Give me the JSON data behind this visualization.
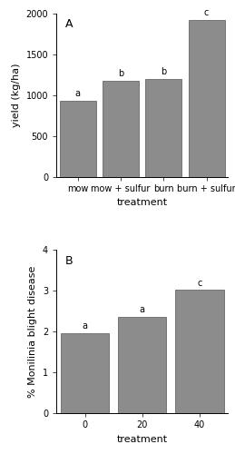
{
  "panel_A": {
    "categories": [
      "mow",
      "mow + sulfur",
      "burn",
      "burn + sulfur"
    ],
    "values": [
      930,
      1175,
      1200,
      1920
    ],
    "labels": [
      "a",
      "b",
      "b",
      "c"
    ],
    "ylabel": "yield (kg/ha)",
    "xlabel": "treatment",
    "ylim": [
      0,
      2000
    ],
    "yticks": [
      0,
      500,
      1000,
      1500,
      2000
    ],
    "panel_label": "A"
  },
  "panel_B": {
    "categories": [
      "0",
      "20",
      "40"
    ],
    "values": [
      1.97,
      2.37,
      3.02
    ],
    "labels": [
      "a",
      "a",
      "c"
    ],
    "ylabel": "% Monilinia blight disease",
    "xlabel": "treatment",
    "ylim": [
      0,
      4
    ],
    "yticks": [
      0,
      1,
      2,
      3,
      4
    ],
    "panel_label": "B"
  },
  "bar_color": "#8c8c8c",
  "bar_edge_color": "#555555",
  "background_color": "#ffffff",
  "bar_width": 0.85,
  "label_fontsize": 7,
  "tick_fontsize": 7,
  "axis_label_fontsize": 8,
  "panel_label_fontsize": 9
}
